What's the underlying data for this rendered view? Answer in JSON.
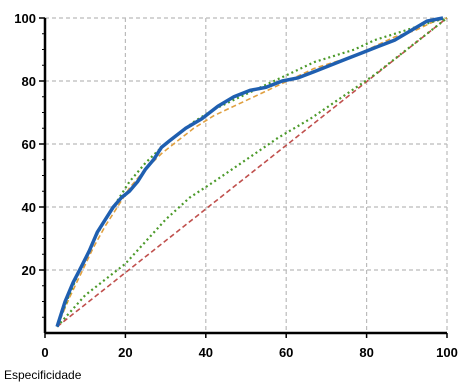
{
  "chart_data": {
    "type": "line",
    "title": "",
    "xlabel": "Especificidade",
    "ylabel": "",
    "xlim": [
      0,
      100
    ],
    "ylim": [
      0,
      100
    ],
    "grid": true,
    "legend": "none",
    "x_ticks": [
      0,
      20,
      40,
      60,
      80,
      100
    ],
    "y_ticks": [
      20,
      40,
      60,
      80,
      100
    ],
    "x_tick_labels": [
      "0",
      "20",
      "40",
      "60",
      "80",
      "100"
    ],
    "y_tick_labels": [
      "20",
      "40",
      "60",
      "80",
      "100"
    ],
    "colors": {
      "roc": "#1f5fb0",
      "ci_band": "#4c9a2a",
      "ci_band_secondary": "#e0a040",
      "reference": "#c0504d",
      "grid": "#bbbbbb",
      "axis": "#000000"
    },
    "series": [
      {
        "style": "solid",
        "color": "#1f5fb0",
        "x": [
          3,
          5,
          7,
          9,
          11,
          13,
          15,
          17,
          19,
          21,
          23,
          25,
          27,
          29,
          31,
          35,
          39,
          43,
          47,
          51,
          55,
          59,
          63,
          67,
          71,
          75,
          79,
          83,
          87,
          91,
          95,
          99
        ],
        "y": [
          2,
          10,
          16,
          21,
          26,
          32,
          36,
          40,
          43,
          45,
          48,
          52,
          55,
          59,
          61,
          65,
          68,
          72,
          75,
          77,
          78,
          80,
          81,
          83,
          85,
          87,
          89,
          91,
          93,
          96,
          99,
          100
        ]
      },
      {
        "style": "dotted",
        "color": "#4c9a2a",
        "x": [
          3,
          6,
          9,
          12,
          15,
          18,
          21,
          25,
          29,
          33,
          37,
          42,
          47,
          52,
          57,
          62,
          67,
          72,
          77,
          82,
          87,
          92,
          97,
          100
        ],
        "y": [
          2,
          12,
          21,
          29,
          36,
          42,
          48,
          54,
          59,
          63,
          67,
          71,
          74,
          77,
          80,
          83,
          86,
          88,
          90,
          93,
          95,
          97,
          99,
          100
        ]
      },
      {
        "style": "dashed",
        "color": "#e0a040",
        "x": [
          3,
          6,
          9,
          12,
          15,
          18,
          21,
          25,
          29,
          33,
          37,
          42,
          47,
          52,
          57,
          62,
          67,
          72,
          77,
          82,
          87,
          92,
          97,
          100
        ],
        "y": [
          2,
          11,
          19,
          27,
          34,
          40,
          46,
          52,
          57,
          61,
          65,
          69,
          72,
          75,
          78,
          81,
          84,
          86,
          88,
          91,
          94,
          96,
          99,
          100
        ]
      },
      {
        "style": "dotted",
        "color": "#4c9a2a",
        "x": [
          3,
          10,
          20,
          30,
          36,
          42,
          50,
          58,
          66,
          74,
          82,
          90,
          95,
          100
        ],
        "y": [
          2,
          12,
          22,
          36,
          43,
          48,
          55,
          62,
          68,
          75,
          82,
          90,
          95,
          100
        ]
      },
      {
        "style": "dashed",
        "color": "#c0504d",
        "x": [
          3,
          100
        ],
        "y": [
          2,
          100
        ]
      }
    ]
  }
}
